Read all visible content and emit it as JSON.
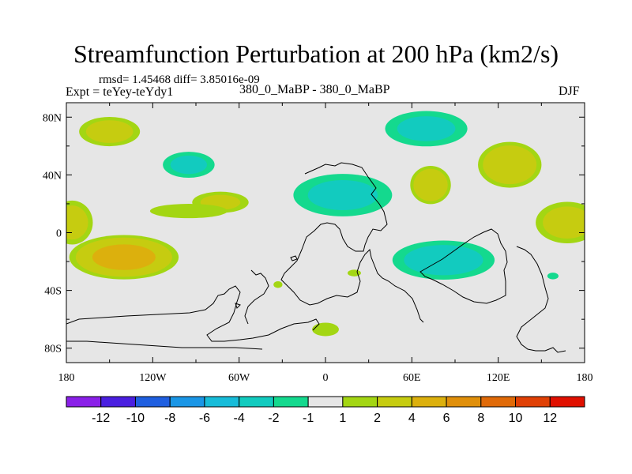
{
  "chart_data": {
    "type": "heatmap",
    "title": "Streamfunction Perturbation at 200 hPa (km2/s)",
    "left_annotation_line1": "rmsd= 1.45468  diff= 3.85016e-09",
    "left_annotation_line2": "Expt = teYey-teYdy1",
    "center_annotation": "380_0_MaBP - 380_0_MaBP",
    "right_annotation": "DJF",
    "x_ticks": [
      {
        "lon": -180,
        "label": "180"
      },
      {
        "lon": -120,
        "label": "120W"
      },
      {
        "lon": -60,
        "label": "60W"
      },
      {
        "lon": 0,
        "label": "0"
      },
      {
        "lon": 60,
        "label": "60E"
      },
      {
        "lon": 120,
        "label": "120E"
      },
      {
        "lon": 180,
        "label": "180"
      }
    ],
    "y_ticks": [
      {
        "lat": 80,
        "label": "80N"
      },
      {
        "lat": 40,
        "label": "40N"
      },
      {
        "lat": 0,
        "label": "0"
      },
      {
        "lat": -40,
        "label": "40S"
      },
      {
        "lat": -80,
        "label": "80S"
      }
    ],
    "xlim": [
      -180,
      180
    ],
    "ylim": [
      -90,
      90
    ],
    "colorbar": {
      "colors": [
        "#8a20e8",
        "#4a1fe0",
        "#1f5fe0",
        "#1a96e6",
        "#17bcd9",
        "#12cbbf",
        "#14d98e",
        "#e6e6e6",
        "#a3d613",
        "#c6cc10",
        "#dcb00d",
        "#e08f0a",
        "#e06a08",
        "#e04005",
        "#e01000"
      ],
      "labels": [
        "-12",
        "-10",
        "-8",
        "-6",
        "-4",
        "-2",
        "-1",
        "1",
        "2",
        "4",
        "6",
        "8",
        "10",
        "12"
      ]
    },
    "anomalies": [
      {
        "name": "NH high Pacific",
        "lon": -150,
        "lat": 70,
        "rlon": 25,
        "rlat": 12,
        "value": 3
      },
      {
        "name": "NH low C Pacific",
        "lon": -95,
        "lat": 47,
        "rlon": 22,
        "rlat": 11,
        "value": -2.5
      },
      {
        "name": "NH high C Atl",
        "lon": -73,
        "lat": 21,
        "rlon": 24,
        "rlat": 9,
        "value": 2.5
      },
      {
        "name": "Eq high band",
        "lon": -95,
        "lat": 15,
        "rlon": 38,
        "rlat": 7,
        "value": 1.5
      },
      {
        "name": "NH low Eurasia",
        "lon": 12,
        "lat": 26,
        "rlon": 42,
        "rlat": 18,
        "value": -2.5
      },
      {
        "name": "NH low N Asia",
        "lon": 70,
        "lat": 72,
        "rlon": 35,
        "rlat": 15,
        "value": -2.5
      },
      {
        "name": "NH high Siberia",
        "lon": 73,
        "lat": 33,
        "rlon": 16,
        "rlat": 15,
        "value": 4
      },
      {
        "name": "NH high NE Pacific",
        "lon": 128,
        "lat": 47,
        "rlon": 25,
        "rlat": 18,
        "value": 4
      },
      {
        "name": "NH high Pacific edge",
        "lon": 168,
        "lat": 7,
        "rlon": 26,
        "rlat": 17,
        "value": 3
      },
      {
        "name": "NH high Atlantic edge",
        "lon": -176,
        "lat": 7,
        "rlon": 17,
        "rlat": 18,
        "value": 3
      },
      {
        "name": "SH high S Pacific",
        "lon": -140,
        "lat": -17,
        "rlon": 42,
        "rlat": 17,
        "value": 5
      },
      {
        "name": "SH low Indian Ocean",
        "lon": 82,
        "lat": -19,
        "rlon": 42,
        "rlat": 16,
        "value": -3
      },
      {
        "name": "SH high Antarctica",
        "lon": 0,
        "lat": -67,
        "rlon": 12,
        "rlat": 6,
        "value": 2
      },
      {
        "name": "SH small high Atl",
        "lon": 20,
        "lat": -28,
        "rlon": 6,
        "rlat": 3,
        "value": 2
      },
      {
        "name": "SH small high S Atl",
        "lon": -33,
        "lat": -36,
        "rlon": 4,
        "rlat": 3,
        "value": 2
      },
      {
        "name": "SH small low Pacific",
        "lon": 158,
        "lat": -30,
        "rlon": 5,
        "rlat": 3,
        "value": -2
      }
    ]
  }
}
